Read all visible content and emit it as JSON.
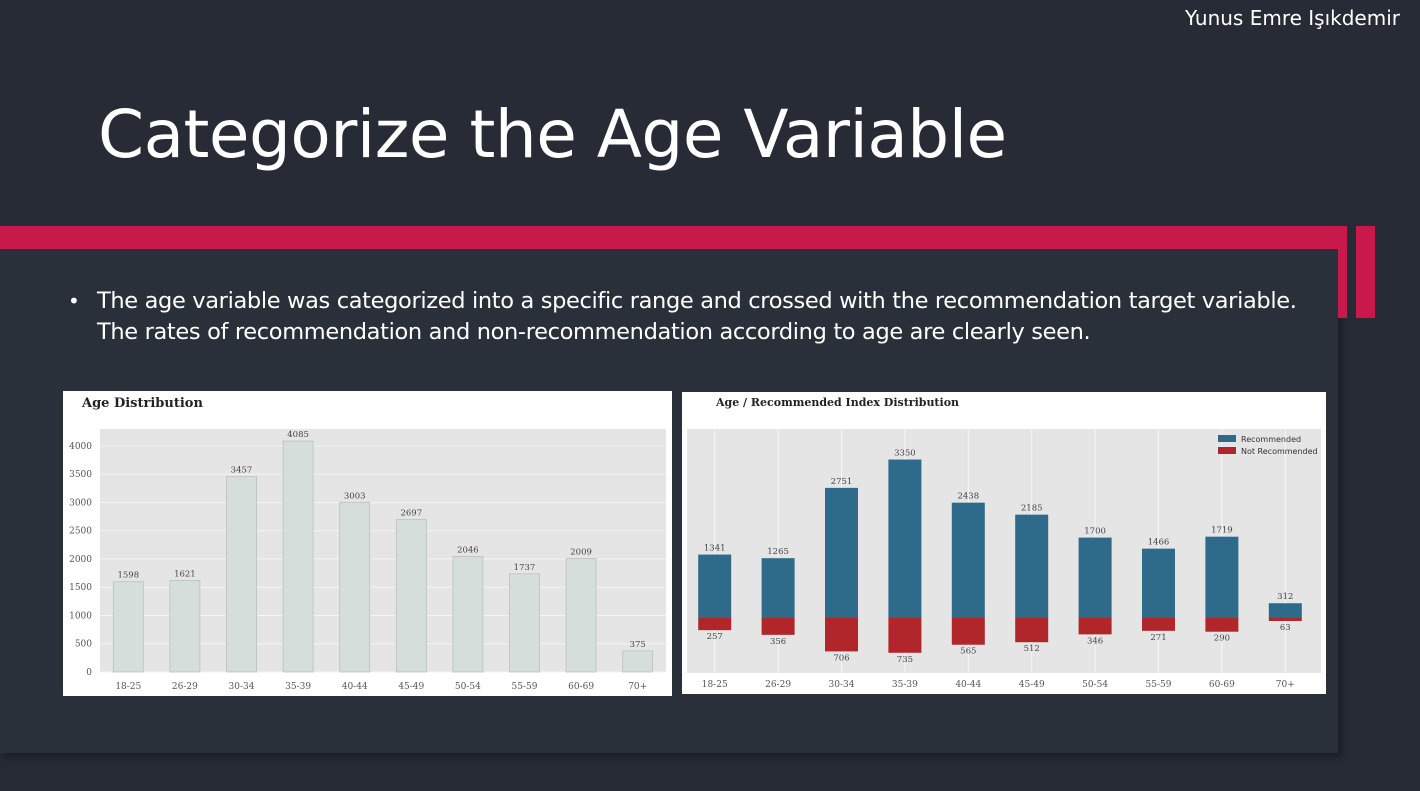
{
  "slide": {
    "author": "Yunus Emre Işıkdemir",
    "title": "Categorize the Age Variable",
    "bullet": "The age variable was categorized into a specific range and crossed with the recommendation target variable. The rates of recommendation and non-recommendation according to age are clearly seen."
  },
  "colors": {
    "background": "#262b35",
    "accent": "#c8194a",
    "bar_single": "#d6dedc",
    "recommended": "#2e6a8a",
    "not_recommended": "#b0262a",
    "plot_bg": "#e5e5e5"
  },
  "chart_data": [
    {
      "type": "bar",
      "title": "Age Distribution",
      "categories": [
        "18-25",
        "26-29",
        "30-34",
        "35-39",
        "40-44",
        "45-49",
        "50-54",
        "55-59",
        "60-69",
        "70+"
      ],
      "values": [
        1598,
        1621,
        3457,
        4085,
        3003,
        2697,
        2046,
        1737,
        2009,
        375
      ],
      "yticks": [
        0,
        500,
        1000,
        1500,
        2000,
        2500,
        3000,
        3500,
        4000
      ],
      "ylim": [
        0,
        4300
      ],
      "grid": true
    },
    {
      "type": "bar",
      "title": "Age / Recommended Index Distribution",
      "categories": [
        "18-25",
        "26-29",
        "30-34",
        "35-39",
        "40-44",
        "45-49",
        "50-54",
        "55-59",
        "60-69",
        "70+"
      ],
      "series": [
        {
          "name": "Recommended",
          "values": [
            1341,
            1265,
            2751,
            3350,
            2438,
            2185,
            1700,
            1466,
            1719,
            312
          ]
        },
        {
          "name": "Not Recommended",
          "values": [
            257,
            356,
            706,
            735,
            565,
            512,
            346,
            271,
            290,
            63
          ]
        }
      ],
      "legend": "top-right",
      "grid": true
    }
  ]
}
